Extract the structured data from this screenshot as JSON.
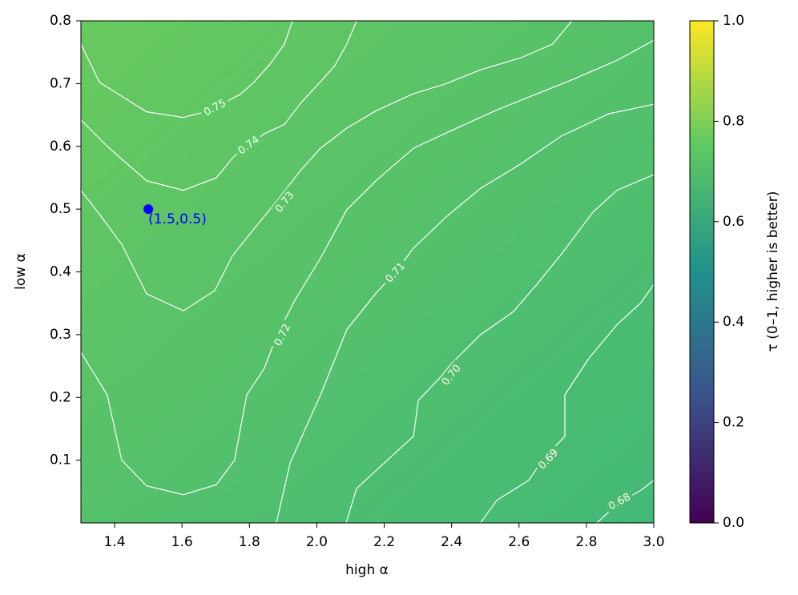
{
  "chart_data": {
    "type": "contour",
    "x_label": "high α",
    "y_label": "low α",
    "xlim": [
      1.3,
      3.0
    ],
    "ylim": [
      0,
      0.8
    ],
    "xticks": [
      1.4,
      1.6,
      1.8,
      {
        "value": 2.0,
        "label": "2.0"
      },
      2.2,
      2.4,
      2.6,
      2.8,
      {
        "value": 3.0,
        "label": "3.0"
      }
    ],
    "yticks": [
      0.1,
      0.2,
      0.3,
      0.4,
      0.5,
      0.6,
      0.7,
      0.8
    ],
    "colormap": "viridis",
    "colorbar": {
      "label": "τ (0–1, higher is better)",
      "lim": [
        0,
        1
      ],
      "ticks": [
        {
          "value": 0,
          "label": "0.0"
        },
        0.2,
        0.4,
        0.6,
        0.8,
        {
          "value": 1,
          "label": "1.0"
        }
      ]
    },
    "line_color": "#ffffff",
    "contours": [
      {
        "level": 0.75,
        "x": [
          1.3,
          1.355,
          1.495,
          1.604,
          1.683,
          1.773,
          1.813,
          1.861,
          1.904,
          1.928
        ],
        "y": [
          0.763,
          0.702,
          0.655,
          0.646,
          0.657,
          0.683,
          0.702,
          0.731,
          0.763,
          0.8
        ]
      },
      {
        "level": 0.74,
        "x": [
          1.3,
          1.378,
          1.495,
          1.604,
          1.702,
          1.754,
          1.844,
          1.904,
          1.954,
          2.016,
          2.054,
          2.089,
          2.118
        ],
        "y": [
          0.642,
          0.6,
          0.545,
          0.53,
          0.55,
          0.584,
          0.62,
          0.635,
          0.67,
          0.706,
          0.729,
          0.763,
          0.8
        ]
      },
      {
        "level": 0.73,
        "x": [
          1.3,
          1.359,
          1.421,
          1.495,
          1.604,
          1.697,
          1.749,
          1.802,
          1.868,
          1.951,
          2.011,
          2.089,
          2.177,
          2.287,
          2.379,
          2.486,
          2.605,
          2.7,
          2.757
        ],
        "y": [
          0.53,
          0.489,
          0.444,
          0.365,
          0.338,
          0.37,
          0.425,
          0.461,
          0.504,
          0.561,
          0.597,
          0.629,
          0.657,
          0.684,
          0.699,
          0.722,
          0.741,
          0.763,
          0.8
        ]
      },
      {
        "level": 0.72,
        "x": [
          1.3,
          1.378,
          1.421,
          1.495,
          1.604,
          1.702,
          1.756,
          1.792,
          1.844,
          1.88,
          1.935,
          2.011,
          2.089,
          2.177,
          2.287,
          2.391,
          2.534,
          2.757,
          2.891,
          3.0
        ],
        "y": [
          0.272,
          0.204,
          0.1,
          0.059,
          0.045,
          0.061,
          0.1,
          0.204,
          0.246,
          0.297,
          0.355,
          0.422,
          0.499,
          0.546,
          0.597,
          0.623,
          0.658,
          0.706,
          0.737,
          0.769
        ]
      },
      {
        "level": 0.71,
        "x": [
          1.88,
          1.921,
          2.011,
          2.089,
          2.177,
          2.232,
          2.287,
          2.391,
          2.486,
          2.605,
          2.724,
          2.867,
          3.0
        ],
        "y": [
          0.0,
          0.096,
          0.204,
          0.308,
          0.367,
          0.399,
          0.438,
          0.491,
          0.533,
          0.572,
          0.616,
          0.652,
          0.667
        ]
      },
      {
        "level": {
          "value": 0.7,
          "label": "0.70"
        },
        "x": [
          2.087,
          2.118,
          2.201,
          2.287,
          2.301,
          2.368,
          2.398,
          2.486,
          2.582,
          2.653,
          2.724,
          2.819,
          2.891,
          3.0
        ],
        "y": [
          0.0,
          0.055,
          0.096,
          0.138,
          0.195,
          0.233,
          0.253,
          0.3,
          0.336,
          0.38,
          0.427,
          0.495,
          0.53,
          0.555
        ]
      },
      {
        "level": 0.69,
        "x": [
          2.486,
          2.534,
          2.629,
          2.672,
          2.736,
          2.736,
          2.807,
          2.891,
          2.962,
          3.0
        ],
        "y": [
          0.0,
          0.036,
          0.068,
          0.102,
          0.138,
          0.204,
          0.262,
          0.316,
          0.351,
          0.38
        ]
      },
      {
        "level": 0.68,
        "x": [
          2.831,
          2.898,
          2.962,
          3.0
        ],
        "y": [
          0.0,
          0.033,
          0.052,
          0.068
        ]
      }
    ],
    "annotation": {
      "x": 1.5,
      "y": 0.5,
      "text": "(1.5,0.5)",
      "color": "#0000ff"
    }
  }
}
